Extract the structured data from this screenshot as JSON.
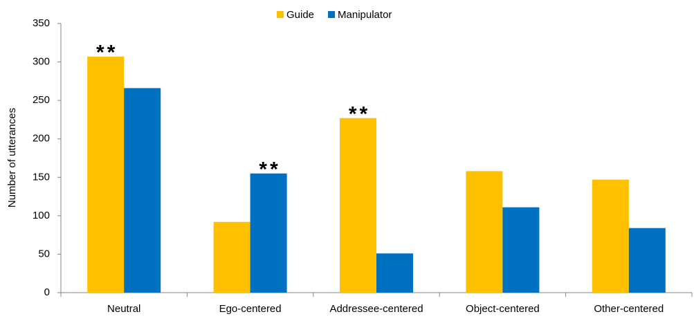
{
  "chart_data": {
    "type": "bar",
    "y_label": "Number of utterances",
    "categories": [
      "Neutral",
      "Ego-centered",
      "Addressee-centered",
      "Object-centered",
      "Other-centered"
    ],
    "series": [
      {
        "name": "Guide",
        "color": "#ffc000",
        "values": [
          307,
          92,
          227,
          158,
          147
        ]
      },
      {
        "name": "Manipulator",
        "color": "#0070c0",
        "values": [
          266,
          155,
          51,
          111,
          84
        ]
      }
    ],
    "ylim": [
      0,
      350
    ],
    "yticks": [
      0,
      50,
      100,
      150,
      200,
      250,
      300,
      350
    ],
    "grid": false,
    "legend": "top",
    "annotations": [
      {
        "text": "**",
        "category": "Neutral",
        "series": "Guide"
      },
      {
        "text": "**",
        "category": "Ego-centered",
        "series": "Manipulator"
      },
      {
        "text": "**",
        "category": "Addressee-centered",
        "series": "Guide"
      }
    ]
  }
}
